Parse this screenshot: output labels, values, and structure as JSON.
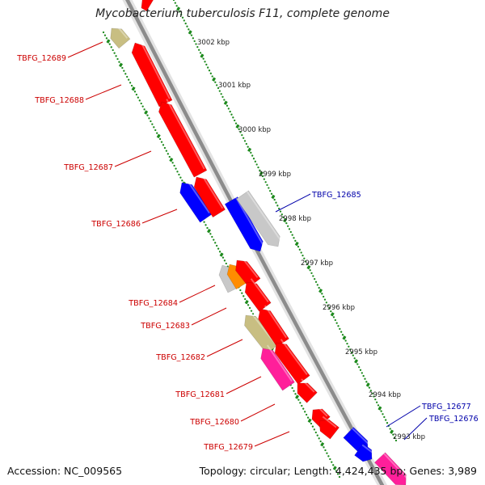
{
  "title": "Mycobacterium tuberculosis F11, complete genome",
  "footer": {
    "accession": "Accession: NC_009565",
    "summary": "Topology: circular; Length: 4,424,435 bp; Genes: 3,989"
  },
  "colors": {
    "backbone": "#8c8c8c",
    "tick": "#1d8a1d",
    "reverse_label": "#cc0000",
    "forward_label": "#0000aa",
    "red_gene": "#ff0000",
    "blue_gene": "#0000ff",
    "gray_gene": "#c8c8c8",
    "olive_gene": "#c8be82",
    "pink_gene": "#ff1f9a",
    "orange_gene": "#ff8c00"
  },
  "position_labels": [
    "3002 kbp",
    "3001 kbp",
    "3000 kbp",
    "2999 kbp",
    "2998 kbp",
    "2997 kbp",
    "2996 kbp",
    "2995 kbp",
    "2994 kbp",
    "2993 kbp"
  ],
  "reverse_genes": [
    "TBFG_12689",
    "TBFG_12688",
    "TBFG_12687",
    "TBFG_12686",
    "TBFG_12684",
    "TBFG_12683",
    "TBFG_12682",
    "TBFG_12681",
    "TBFG_12680",
    "TBFG_12679"
  ],
  "forward_genes": [
    "TBFG_12685",
    "TBFG_12677",
    "TBFG_12676"
  ],
  "features": [
    {
      "strand": "reverse",
      "color": "olive_gene"
    },
    {
      "strand": "reverse",
      "color": "red_gene"
    },
    {
      "strand": "reverse",
      "color": "red_gene"
    },
    {
      "strand": "reverse",
      "color": "red_gene"
    },
    {
      "strand": "reverse",
      "color": "blue_gene"
    },
    {
      "strand": "reverse",
      "color": "red_gene"
    },
    {
      "strand": "reverse",
      "color": "gray_gene"
    },
    {
      "strand": "reverse",
      "color": "orange_gene"
    },
    {
      "strand": "reverse",
      "color": "red_gene"
    },
    {
      "strand": "reverse",
      "color": "red_gene"
    },
    {
      "strand": "reverse",
      "color": "olive_gene"
    },
    {
      "strand": "reverse",
      "color": "red_gene"
    },
    {
      "strand": "reverse",
      "color": "pink_gene"
    },
    {
      "strand": "reverse",
      "color": "red_gene"
    },
    {
      "strand": "reverse",
      "color": "red_gene"
    },
    {
      "strand": "reverse",
      "color": "red_gene"
    },
    {
      "strand": "reverse",
      "color": "red_gene"
    },
    {
      "strand": "forward",
      "color": "blue_gene"
    },
    {
      "strand": "forward",
      "color": "gray_gene"
    },
    {
      "strand": "forward",
      "color": "blue_gene"
    },
    {
      "strand": "forward",
      "color": "blue_gene"
    },
    {
      "strand": "forward",
      "color": "pink_gene"
    }
  ]
}
